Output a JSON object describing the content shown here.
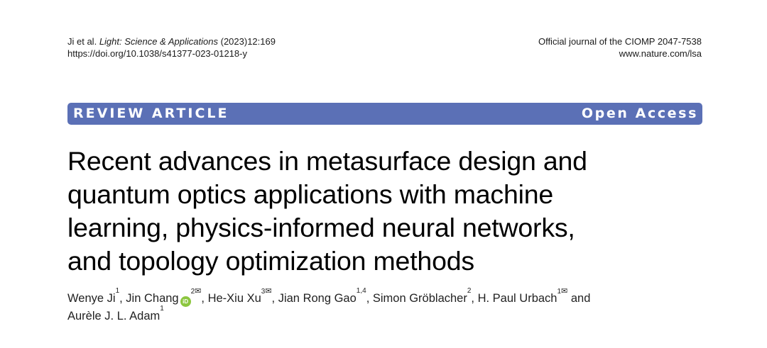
{
  "header": {
    "citation_authors": "Ji et al.",
    "journal": "Light: Science & Applications",
    "citation_rest": "(2023)12:169",
    "doi": "https://doi.org/10.1038/s41377-023-01218-y",
    "journal_line": "Official journal of the CIOMP 2047-7538",
    "website": "www.nature.com/lsa"
  },
  "band": {
    "article_type": "REVIEW ARTICLE",
    "access": "Open Access",
    "color": "#5b70b6"
  },
  "title_lines": [
    "Recent advances in metasurface design and",
    "quantum optics applications with machine",
    "learning, physics-informed neural networks,",
    "and topology optimization methods"
  ],
  "authors": [
    {
      "name": "Wenye Ji",
      "sup": "1"
    },
    {
      "name": "Jin Chang",
      "orcid": "iD",
      "sup": "2",
      "mail": "✉"
    },
    {
      "name": "He-Xiu Xu",
      "sup": "3",
      "mail": "✉"
    },
    {
      "name": "Jian Rong Gao",
      "sup": "1,4"
    },
    {
      "name": "Simon Gröblacher",
      "sup": "2"
    },
    {
      "name": "H. Paul Urbach",
      "sup": "1",
      "mail": "✉"
    },
    {
      "name": "Aurèle J. L. Adam",
      "sup": "1"
    }
  ],
  "authors_conjunction": "and"
}
